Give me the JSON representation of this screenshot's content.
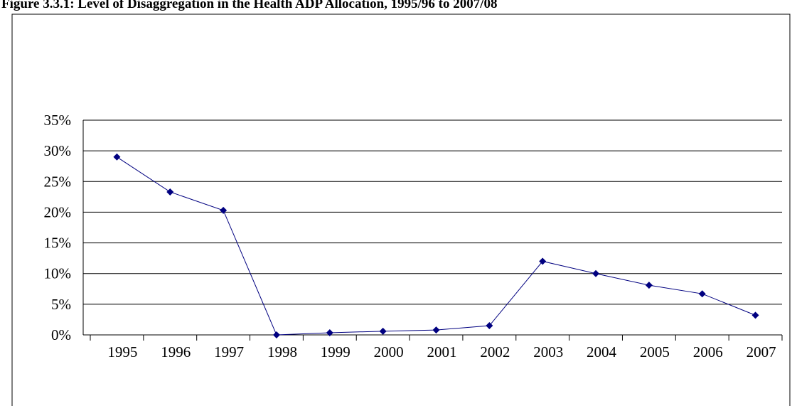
{
  "chart_data": {
    "type": "line",
    "title": "Figure 3.3.1: Level of Disaggregation in the Health ADP Allocation, 1995/96 to 2007/08",
    "categories": [
      "1995",
      "1996",
      "1997",
      "1998",
      "1999",
      "2000",
      "2001",
      "2002",
      "2003",
      "2004",
      "2005",
      "2006",
      "2007"
    ],
    "series": [
      {
        "color": "#000080",
        "values": [
          29.0,
          23.3,
          20.3,
          0,
          0.35,
          0.6,
          0.8,
          1.5,
          12.0,
          10.0,
          8.1,
          6.7,
          3.2
        ]
      }
    ],
    "ylim": [
      0,
      35
    ],
    "yticks": [
      {
        "value": 0,
        "label": "0%"
      },
      {
        "value": 5,
        "label": "5%"
      },
      {
        "value": 10,
        "label": "10%"
      },
      {
        "value": 15,
        "label": "15%"
      },
      {
        "value": 20,
        "label": "20%"
      },
      {
        "value": 25,
        "label": "25%"
      },
      {
        "value": 30,
        "label": "30%"
      },
      {
        "value": 35,
        "label": "35%"
      }
    ],
    "grid": true
  }
}
